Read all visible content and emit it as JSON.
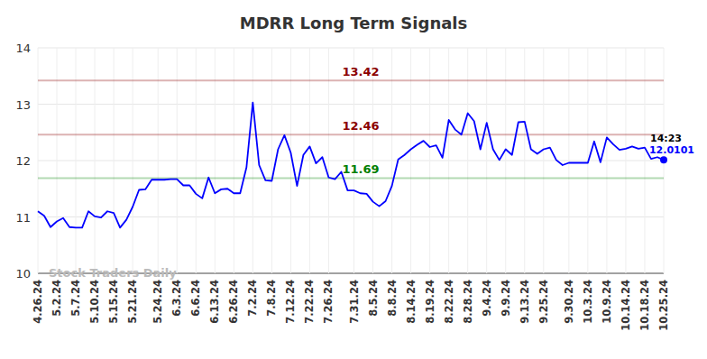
{
  "chart_data": {
    "type": "line",
    "title": "MDRR Long Term Signals",
    "categories": [
      "4.26.24",
      null,
      null,
      "5.2.24",
      null,
      null,
      "5.7.24",
      null,
      null,
      "5.10.24",
      null,
      null,
      "5.15.24",
      null,
      null,
      "5.21.24",
      null,
      null,
      null,
      "5.24.24",
      null,
      null,
      "6.3.24",
      null,
      null,
      "6.6.24",
      null,
      null,
      "6.13.24",
      null,
      null,
      "6.26.24",
      null,
      null,
      "7.2.24",
      null,
      null,
      "7.8.24",
      null,
      null,
      "7.12.24",
      null,
      null,
      "7.22.24",
      null,
      null,
      "7.26.24",
      null,
      null,
      null,
      "7.31.24",
      null,
      null,
      "8.5.24",
      null,
      null,
      "8.8.24",
      null,
      null,
      "8.14.24",
      null,
      null,
      "8.19.24",
      null,
      null,
      "8.22.24",
      null,
      null,
      "8.28.24",
      null,
      null,
      "9.4.24",
      null,
      null,
      "9.9.24",
      null,
      null,
      "9.13.24",
      null,
      null,
      "9.25.24",
      null,
      null,
      null,
      "9.30.24",
      null,
      null,
      "10.3.24",
      null,
      null,
      "10.9.24",
      null,
      null,
      "10.14.24",
      null,
      null,
      "10.18.24",
      null,
      null,
      "10.25.24"
    ],
    "series": [
      {
        "name": "MDRR",
        "color": "#0000ff",
        "values": [
          11.1,
          11.02,
          10.82,
          10.92,
          10.98,
          10.82,
          10.81,
          10.81,
          11.1,
          11.01,
          10.99,
          11.1,
          11.07,
          10.81,
          10.95,
          11.18,
          11.48,
          11.49,
          11.66,
          11.66,
          11.66,
          11.67,
          11.67,
          11.56,
          11.56,
          11.41,
          11.33,
          11.7,
          11.42,
          11.49,
          11.5,
          11.42,
          11.42,
          11.88,
          13.03,
          11.92,
          11.65,
          11.64,
          12.2,
          12.45,
          12.14,
          11.55,
          12.1,
          12.25,
          11.95,
          12.06,
          11.7,
          11.67,
          11.8,
          11.47,
          11.47,
          11.42,
          11.41,
          11.27,
          11.19,
          11.28,
          11.55,
          12.02,
          12.1,
          12.2,
          12.28,
          12.35,
          12.24,
          12.27,
          12.05,
          12.72,
          12.55,
          12.46,
          12.84,
          12.7,
          12.2,
          12.67,
          12.2,
          12.01,
          12.2,
          12.1,
          12.68,
          12.69,
          12.2,
          12.12,
          12.2,
          12.23,
          12.01,
          11.92,
          11.96,
          11.96,
          11.96,
          11.96,
          12.34,
          11.97,
          12.41,
          12.29,
          12.19,
          12.21,
          12.25,
          12.21,
          12.23,
          12.03,
          12.06,
          12.0101
        ]
      }
    ],
    "ylim": [
      10,
      14
    ],
    "yticks": [
      10,
      11,
      12,
      13,
      14
    ],
    "grid": true,
    "reference_lines": [
      {
        "value": 13.42,
        "label": "13.42",
        "color": "#8b0000"
      },
      {
        "value": 12.46,
        "label": "12.46",
        "color": "#8b0000"
      },
      {
        "value": 11.69,
        "label": "11.69",
        "color": "#008000"
      }
    ],
    "annotations": [
      {
        "text": "14:23",
        "index": 99
      },
      {
        "text": "Stock Traders Daily"
      }
    ]
  }
}
